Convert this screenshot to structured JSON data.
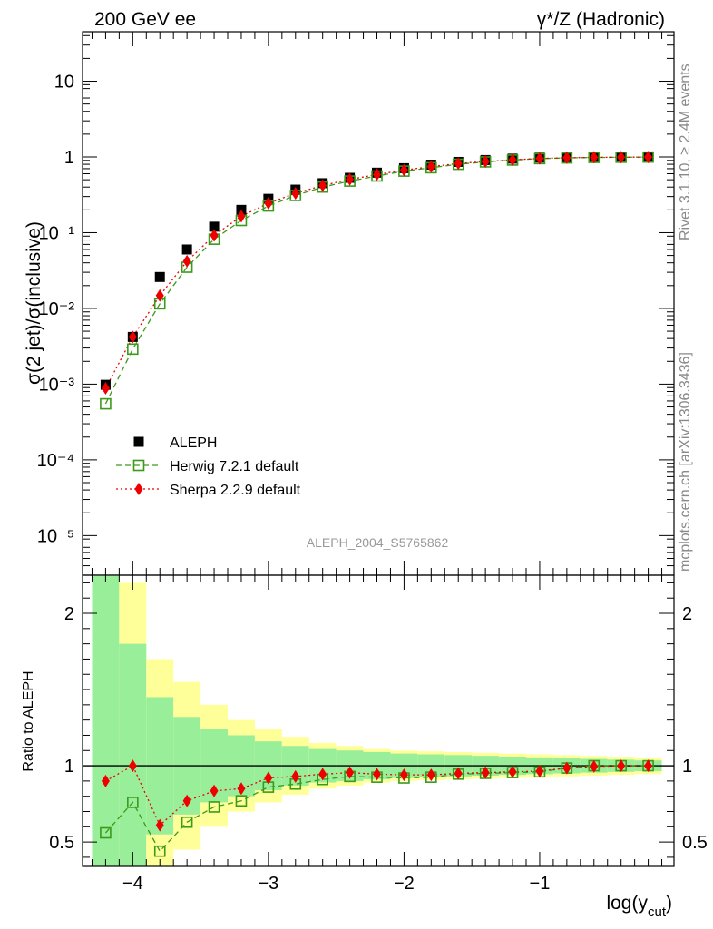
{
  "header": {
    "left_title": "200 GeV ee",
    "right_title": "γ*/Z (Hadronic)"
  },
  "side_labels": {
    "rivet": "Rivet 3.1.10, ≥ 2.4M events",
    "mcplots": "mcplots.cern.ch [arXiv:1306.3436]"
  },
  "chart_data": [
    {
      "type": "scatter",
      "panel": "main",
      "analysis_label": "ALEPH_2004_S5765862",
      "ylabel": "σ(2 jet)/σ(inclusive)",
      "xlabel": "",
      "yscale": "log",
      "ylim": [
        3e-06,
        45
      ],
      "xlim": [
        -4.37,
        -0.01
      ],
      "y_tick_labels": [
        "10⁻⁵",
        "10⁻⁴",
        "10⁻³",
        "10⁻²",
        "10⁻¹",
        "1",
        "10"
      ],
      "legend_position": "bottom-left",
      "x": [
        -4.2,
        -4.0,
        -3.8,
        -3.6,
        -3.4,
        -3.2,
        -3.0,
        -2.8,
        -2.6,
        -2.4,
        -2.2,
        -2.0,
        -1.8,
        -1.6,
        -1.4,
        -1.2,
        -1.0,
        -0.8,
        -0.6,
        -0.4,
        -0.2
      ],
      "series": [
        {
          "name": "ALEPH",
          "color": "#000000",
          "marker": "filled-square",
          "values": [
            0.00098,
            0.0042,
            0.026,
            0.06,
            0.12,
            0.2,
            0.28,
            0.37,
            0.45,
            0.53,
            0.62,
            0.71,
            0.79,
            0.86,
            0.91,
            0.95,
            0.98,
            0.99,
            0.995,
            0.998,
            0.999
          ]
        },
        {
          "name": "Herwig 7.2.1 default",
          "color": "#3a9a1a",
          "marker": "open-square",
          "line": "dashed",
          "values": [
            0.00055,
            0.0029,
            0.0115,
            0.035,
            0.082,
            0.145,
            0.225,
            0.31,
            0.4,
            0.48,
            0.56,
            0.65,
            0.72,
            0.8,
            0.86,
            0.91,
            0.95,
            0.97,
            0.985,
            0.99,
            0.995
          ]
        },
        {
          "name": "Sherpa 2.2.9 default",
          "color": "#ee0000",
          "marker": "filled-diamond",
          "line": "dotted",
          "values": [
            0.00088,
            0.0042,
            0.0148,
            0.042,
            0.092,
            0.165,
            0.245,
            0.33,
            0.42,
            0.505,
            0.585,
            0.67,
            0.745,
            0.82,
            0.87,
            0.915,
            0.955,
            0.975,
            0.988,
            0.993,
            0.997
          ]
        }
      ]
    },
    {
      "type": "scatter",
      "panel": "ratio",
      "ylabel": "Ratio to ALEPH",
      "xlabel": "log(y_cut)",
      "ylim": [
        0.34,
        2.25
      ],
      "xlim": [
        -4.37,
        -0.01
      ],
      "x_ticks": [
        -4,
        -3,
        -2,
        -1
      ],
      "x_tick_labels": [
        "−4",
        "−3",
        "−2",
        "−1"
      ],
      "y_ticks": [
        0.5,
        1,
        2
      ],
      "y_tick_labels": [
        "0.5",
        "1",
        "2"
      ],
      "reference_line": 1,
      "bin_edges": [
        -4.3,
        -4.1,
        -3.9,
        -3.7,
        -3.5,
        -3.3,
        -3.1,
        -2.9,
        -2.7,
        -2.5,
        -2.3,
        -2.1,
        -1.9,
        -1.7,
        -1.5,
        -1.3,
        -1.1,
        -0.9,
        -0.7,
        -0.5,
        -0.3,
        -0.1
      ],
      "bands": {
        "stat_color": "#99ee99",
        "total_color": "#ffff99",
        "stat_half_width": [
          1.5,
          0.8,
          0.45,
          0.32,
          0.24,
          0.2,
          0.16,
          0.13,
          0.11,
          0.1,
          0.09,
          0.08,
          0.075,
          0.07,
          0.065,
          0.06,
          0.055,
          0.05,
          0.045,
          0.04,
          0.035
        ],
        "total_half_width": [
          1.5,
          1.2,
          0.7,
          0.55,
          0.4,
          0.3,
          0.24,
          0.19,
          0.15,
          0.13,
          0.11,
          0.1,
          0.095,
          0.09,
          0.085,
          0.08,
          0.075,
          0.07,
          0.065,
          0.06,
          0.055
        ]
      },
      "x": [
        -4.2,
        -4.0,
        -3.8,
        -3.6,
        -3.4,
        -3.2,
        -3.0,
        -2.8,
        -2.6,
        -2.4,
        -2.2,
        -2.0,
        -1.8,
        -1.6,
        -1.4,
        -1.2,
        -1.0,
        -0.8,
        -0.6,
        -0.4,
        -0.2
      ],
      "series": [
        {
          "name": "Herwig 7.2.1 default",
          "color": "#3a9a1a",
          "marker": "open-square",
          "line": "dashed",
          "values": [
            0.56,
            0.76,
            0.44,
            0.63,
            0.73,
            0.77,
            0.86,
            0.88,
            0.91,
            0.93,
            0.925,
            0.92,
            0.925,
            0.945,
            0.95,
            0.955,
            0.96,
            0.985,
            1.0,
            1.0,
            1.0
          ]
        },
        {
          "name": "Sherpa 2.2.9 default",
          "color": "#ee0000",
          "marker": "filled-diamond",
          "line": "dotted",
          "values": [
            0.9,
            1.0,
            0.61,
            0.77,
            0.835,
            0.85,
            0.92,
            0.93,
            0.945,
            0.955,
            0.945,
            0.94,
            0.94,
            0.95,
            0.955,
            0.96,
            0.965,
            0.985,
            0.995,
            1.0,
            1.0
          ]
        }
      ]
    }
  ]
}
